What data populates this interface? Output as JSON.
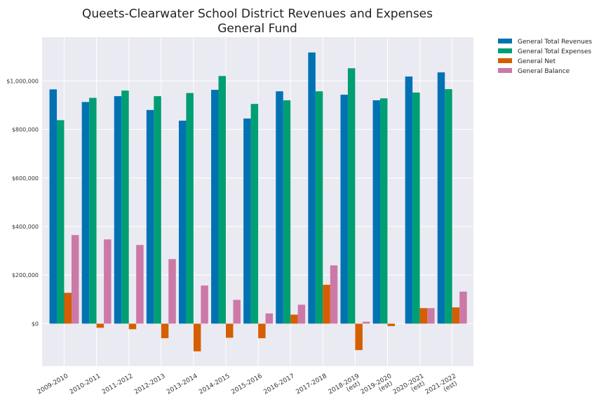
{
  "chart_data": {
    "type": "bar",
    "title": "Queets-Clearwater School District Revenues and Expenses",
    "subtitle": "General Fund",
    "xlabel": "",
    "ylabel": "",
    "ylim": [
      -175000,
      1180000
    ],
    "yticks": [
      0,
      200000,
      400000,
      600000,
      800000,
      1000000
    ],
    "ytick_labels": [
      "$0",
      "$200,000",
      "$400,000",
      "$600,000",
      "$800,000",
      "$1,000,000"
    ],
    "grid": true,
    "legend_position": "top-right, outside plot",
    "categories": [
      "2009-2010",
      "2010-2011",
      "2011-2012",
      "2012-2013",
      "2013-2014",
      "2014-2015",
      "2015-2016",
      "2016-2017",
      "2017-2018",
      "2018-2019\n(est)",
      "2019-2020\n(est)",
      "2020-2021\n(est)",
      "2021-2022\n(est)"
    ],
    "series": [
      {
        "name": "General Total Revenues",
        "color": "#0072b2",
        "values": [
          965000,
          913000,
          937000,
          880000,
          836000,
          963000,
          845000,
          957000,
          1117000,
          943000,
          920000,
          1018000,
          1035000
        ]
      },
      {
        "name": "General Total Expenses",
        "color": "#009e73",
        "values": [
          838000,
          930000,
          960000,
          937000,
          950000,
          1020000,
          905000,
          920000,
          957000,
          1052000,
          928000,
          952000,
          966000
        ]
      },
      {
        "name": "General Net",
        "color": "#d55e00",
        "values": [
          127000,
          -17000,
          -23000,
          -60000,
          -114000,
          -58000,
          -60000,
          37000,
          160000,
          -109000,
          -10000,
          64000,
          67000
        ]
      },
      {
        "name": "General Balance",
        "color": "#cc79a7",
        "values": [
          365000,
          347000,
          324000,
          266000,
          157000,
          98000,
          42000,
          78000,
          240000,
          8000,
          0,
          64000,
          132000
        ]
      }
    ]
  }
}
